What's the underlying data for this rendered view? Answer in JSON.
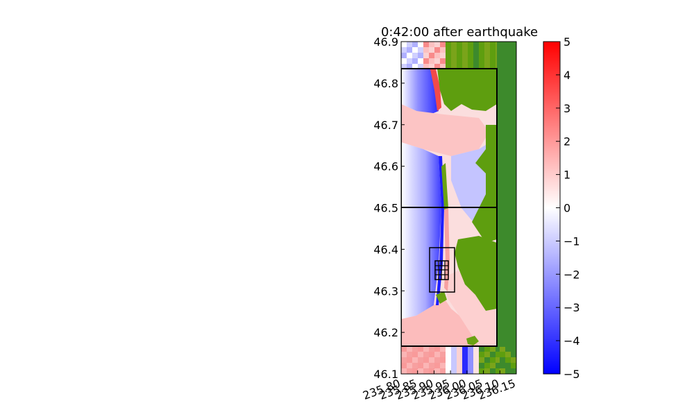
{
  "chart_data": {
    "type": "heatmap",
    "title": "0:42:00 after earthquake",
    "xlabel": "",
    "ylabel": "",
    "xlim": [
      235.8,
      236.15
    ],
    "ylim": [
      46.1,
      46.9
    ],
    "x_ticks": [
      "235.80",
      "235.85",
      "235.90",
      "235.95",
      "236.00",
      "236.05",
      "236.10",
      "236.15"
    ],
    "y_ticks": [
      "46.1",
      "46.2",
      "46.3",
      "46.4",
      "46.5",
      "46.6",
      "46.7",
      "46.8",
      "46.9"
    ],
    "colorbar": {
      "range": [
        -5,
        5
      ],
      "ticks": [
        "5",
        "4",
        "3",
        "2",
        "1",
        "0",
        "−1",
        "−2",
        "−3",
        "−4",
        "−5"
      ],
      "colors": {
        "low": "#0000ff",
        "mid": "#ffffff",
        "high": "#ff0000"
      }
    },
    "land_colors": [
      "#5e9e0f",
      "#3d8a2c",
      "#7aa41a"
    ],
    "grid": false,
    "legend": "none"
  }
}
